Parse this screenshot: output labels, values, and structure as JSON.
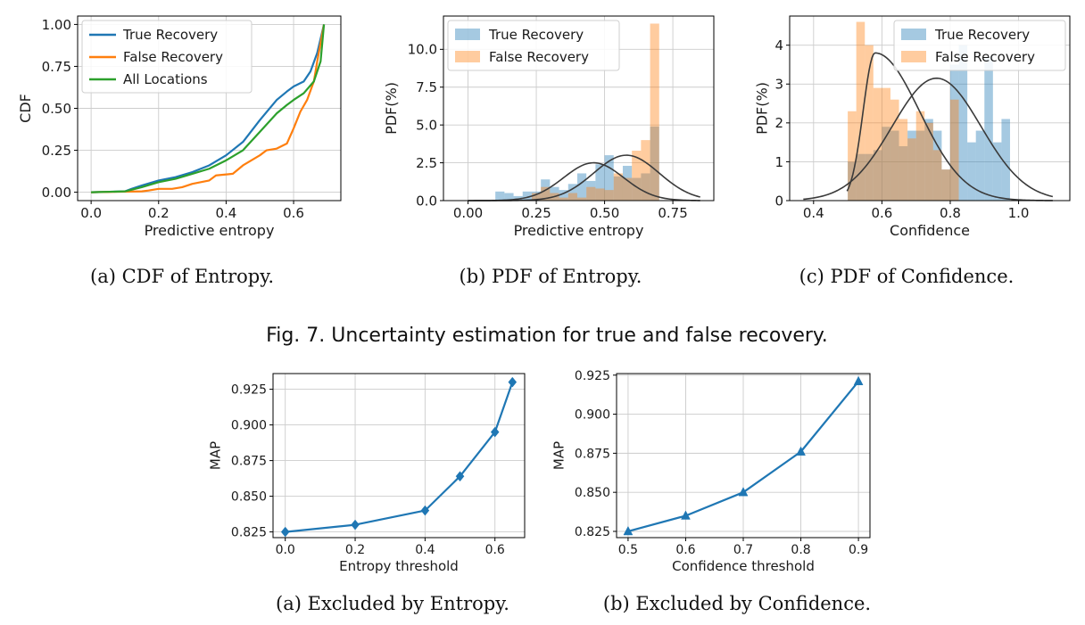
{
  "figure7": {
    "caption": "Fig. 7.  Uncertainty estimation for true and false recovery.",
    "subcaptions": [
      "(a)  CDF of Entropy.",
      "(b)  PDF of Entropy.",
      "(c)  PDF of Confidence."
    ]
  },
  "figure8": {
    "subcaptions": [
      "(a)  Excluded by Entropy.",
      "(b)  Excluded by Confidence."
    ]
  },
  "colors": {
    "true_recovery": "#1f77b4",
    "false_recovery": "#ff7f0e",
    "all_locations": "#2ca02c",
    "fit_curve": "#3a3a3a",
    "grid": "#cccccc"
  },
  "chart_data": [
    {
      "id": "cdf_entropy",
      "type": "line",
      "xlabel": "Predictive entropy",
      "ylabel": "CDF",
      "xlim": [
        -0.04,
        0.74
      ],
      "ylim": [
        -0.05,
        1.05
      ],
      "xticks": [
        0.0,
        0.2,
        0.4,
        0.6
      ],
      "xtick_labels": [
        "0.0",
        "0.2",
        "0.4",
        "0.6"
      ],
      "yticks": [
        0.0,
        0.25,
        0.5,
        0.75,
        1.0
      ],
      "ytick_labels": [
        "0.00",
        "0.25",
        "0.50",
        "0.75",
        "1.00"
      ],
      "grid": true,
      "legend": "top-left",
      "series": [
        {
          "name": "True Recovery",
          "color": "#1f77b4",
          "x": [
            0.0,
            0.1,
            0.12,
            0.15,
            0.2,
            0.25,
            0.3,
            0.35,
            0.4,
            0.45,
            0.5,
            0.55,
            0.58,
            0.6,
            0.63,
            0.65,
            0.67,
            0.69
          ],
          "y": [
            0.0,
            0.005,
            0.02,
            0.04,
            0.07,
            0.09,
            0.12,
            0.16,
            0.22,
            0.3,
            0.43,
            0.55,
            0.6,
            0.63,
            0.66,
            0.72,
            0.83,
            1.0
          ]
        },
        {
          "name": "False Recovery",
          "color": "#ff7f0e",
          "x": [
            0.0,
            0.15,
            0.17,
            0.2,
            0.24,
            0.27,
            0.3,
            0.35,
            0.37,
            0.42,
            0.45,
            0.5,
            0.52,
            0.55,
            0.58,
            0.6,
            0.62,
            0.64,
            0.66,
            0.67,
            0.69
          ],
          "y": [
            0.0,
            0.005,
            0.01,
            0.02,
            0.02,
            0.03,
            0.05,
            0.07,
            0.1,
            0.11,
            0.16,
            0.22,
            0.25,
            0.26,
            0.29,
            0.38,
            0.48,
            0.55,
            0.66,
            0.78,
            1.0
          ]
        },
        {
          "name": "All Locations",
          "color": "#2ca02c",
          "x": [
            0.0,
            0.1,
            0.12,
            0.15,
            0.2,
            0.25,
            0.3,
            0.35,
            0.4,
            0.45,
            0.5,
            0.55,
            0.58,
            0.6,
            0.63,
            0.66,
            0.68,
            0.69
          ],
          "y": [
            0.0,
            0.005,
            0.015,
            0.03,
            0.06,
            0.08,
            0.11,
            0.14,
            0.19,
            0.25,
            0.36,
            0.47,
            0.52,
            0.55,
            0.59,
            0.66,
            0.78,
            1.0
          ]
        }
      ]
    },
    {
      "id": "pdf_entropy",
      "type": "bar",
      "xlabel": "Predictive entropy",
      "ylabel": "PDF(%)",
      "xlim": [
        -0.09,
        0.9
      ],
      "ylim": [
        0,
        12.2
      ],
      "xticks": [
        0.0,
        0.25,
        0.5,
        0.75
      ],
      "xtick_labels": [
        "0.00",
        "0.25",
        "0.50",
        "0.75"
      ],
      "yticks": [
        0.0,
        2.5,
        5.0,
        7.5,
        10.0
      ],
      "ytick_labels": [
        "0.0",
        "2.5",
        "5.0",
        "7.5",
        "10.0"
      ],
      "grid": true,
      "legend": "top-left",
      "bin_edges": [
        0.1,
        0.1333,
        0.1667,
        0.2,
        0.2333,
        0.2667,
        0.3,
        0.3333,
        0.3667,
        0.4,
        0.4333,
        0.4667,
        0.5,
        0.5333,
        0.5667,
        0.6,
        0.6333,
        0.6667,
        0.7
      ],
      "series": [
        {
          "name": "True Recovery",
          "color": "#1f77b4",
          "values": [
            0.6,
            0.5,
            0.3,
            0.6,
            0.6,
            1.4,
            0.9,
            0.7,
            1.1,
            1.8,
            1.3,
            2.4,
            3.0,
            1.6,
            2.3,
            1.5,
            1.8,
            4.9
          ]
        },
        {
          "name": "False Recovery",
          "color": "#ff7f0e",
          "values": [
            0,
            0,
            0,
            0,
            0.5,
            0.9,
            0.5,
            0.2,
            0.5,
            0.2,
            0.9,
            0.8,
            0.7,
            1.8,
            1.5,
            3.3,
            4.0,
            11.7
          ]
        }
      ],
      "fit_curves": [
        {
          "mean": 0.46,
          "std": 0.11,
          "peak": 2.5,
          "x_range": [
            0.0,
            0.85
          ]
        },
        {
          "mean": 0.58,
          "std": 0.12,
          "peak": 3.0,
          "x_range": [
            0.0,
            0.85
          ]
        }
      ]
    },
    {
      "id": "pdf_confidence",
      "type": "bar",
      "xlabel": "Confidence",
      "ylabel": "PDF(%)",
      "xlim": [
        0.33,
        1.15
      ],
      "ylim": [
        0,
        4.75
      ],
      "xticks": [
        0.4,
        0.6,
        0.8,
        1.0
      ],
      "xtick_labels": [
        "0.4",
        "0.6",
        "0.8",
        "1.0"
      ],
      "yticks": [
        0,
        1,
        2,
        3,
        4
      ],
      "ytick_labels": [
        "0",
        "1",
        "2",
        "3",
        "4"
      ],
      "grid": true,
      "legend": "top-right",
      "bin_edges": [
        0.5,
        0.525,
        0.55,
        0.575,
        0.6,
        0.625,
        0.65,
        0.675,
        0.7,
        0.725,
        0.75,
        0.775,
        0.8,
        0.825,
        0.85,
        0.875,
        0.9,
        0.925,
        0.95,
        0.975
      ],
      "series": [
        {
          "name": "True Recovery",
          "color": "#1f77b4",
          "values": [
            1.0,
            1.2,
            1.2,
            1.3,
            1.9,
            1.8,
            1.4,
            1.8,
            1.8,
            2.1,
            1.8,
            0.8,
            3.5,
            4.0,
            1.5,
            1.8,
            3.7,
            1.5,
            2.1
          ]
        },
        {
          "name": "False Recovery",
          "color": "#ff7f0e",
          "values": [
            2.3,
            4.6,
            4.0,
            2.9,
            2.9,
            2.6,
            2.1,
            1.6,
            2.3,
            2.0,
            1.3,
            0.8,
            2.6,
            0,
            0,
            0,
            0,
            0,
            0
          ]
        }
      ],
      "fit_curves": [
        {
          "mean": 0.58,
          "left_std": 0.035,
          "right_std": 0.13,
          "peak": 3.8,
          "x_range": [
            0.498,
            1.1
          ]
        },
        {
          "mean": 0.76,
          "std": 0.13,
          "peak": 3.15,
          "x_range": [
            0.37,
            1.1
          ]
        }
      ]
    },
    {
      "id": "map_entropy_threshold",
      "type": "line",
      "xlabel": "Entropy threshold",
      "ylabel": "MAP",
      "xlim": [
        -0.035,
        0.685
      ],
      "ylim": [
        0.821,
        0.936
      ],
      "xticks": [
        0.0,
        0.2,
        0.4,
        0.6
      ],
      "xtick_labels": [
        "0.0",
        "0.2",
        "0.4",
        "0.6"
      ],
      "yticks": [
        0.825,
        0.85,
        0.875,
        0.9,
        0.925
      ],
      "ytick_labels": [
        "0.825",
        "0.850",
        "0.875",
        "0.900",
        "0.925"
      ],
      "grid": true,
      "marker": "diamond",
      "series": [
        {
          "name": "",
          "color": "#1f77b4",
          "x": [
            0.0,
            0.2,
            0.4,
            0.5,
            0.6,
            0.65
          ],
          "y": [
            0.825,
            0.83,
            0.84,
            0.864,
            0.895,
            0.93
          ]
        }
      ]
    },
    {
      "id": "map_confidence_threshold",
      "type": "line",
      "xlabel": "Confidence threshold",
      "ylabel": "MAP",
      "xlim": [
        0.48,
        0.92
      ],
      "ylim": [
        0.821,
        0.926
      ],
      "xticks": [
        0.5,
        0.6,
        0.7,
        0.8,
        0.9
      ],
      "xtick_labels": [
        "0.5",
        "0.6",
        "0.7",
        "0.8",
        "0.9"
      ],
      "yticks": [
        0.825,
        0.85,
        0.875,
        0.9,
        0.925
      ],
      "ytick_labels": [
        "0.825",
        "0.850",
        "0.875",
        "0.900",
        "0.925"
      ],
      "grid": true,
      "marker": "triangle",
      "series": [
        {
          "name": "",
          "color": "#1f77b4",
          "x": [
            0.5,
            0.6,
            0.7,
            0.8,
            0.9
          ],
          "y": [
            0.825,
            0.835,
            0.85,
            0.876,
            0.921
          ]
        }
      ]
    }
  ]
}
